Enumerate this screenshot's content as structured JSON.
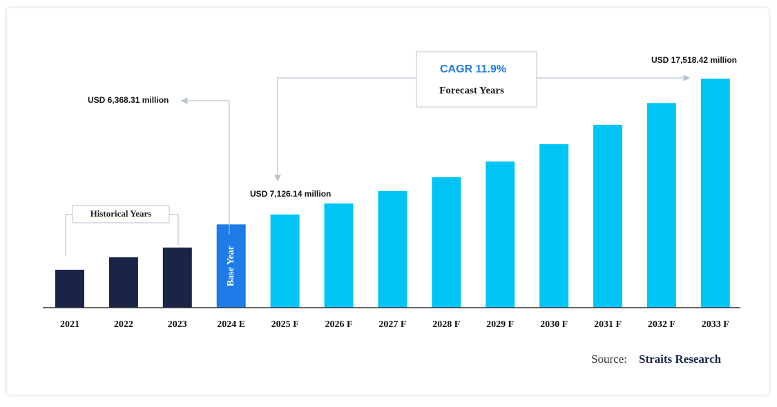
{
  "chart_data": {
    "type": "bar",
    "categories": [
      "2021",
      "2022",
      "2023",
      "2024 E",
      "2025 F",
      "2026 F",
      "2027 F",
      "2028 F",
      "2029 F",
      "2030 F",
      "2031 F",
      "2032 F",
      "2033 F"
    ],
    "values": [
      2900,
      3850,
      4600,
      6368.31,
      7126.14,
      7974,
      8923,
      9985,
      11173,
      12503,
      13991,
      15656,
      17518.42
    ],
    "value_labels": [
      null,
      null,
      null,
      "USD 6,368.31 million",
      "USD 7,126.14 million",
      null,
      null,
      null,
      null,
      null,
      null,
      null,
      "USD 17,518.42 million"
    ],
    "colors": [
      "#1a2448",
      "#1a2448",
      "#1a2448",
      "#1e7be8",
      "#00c4f5",
      "#00c4f5",
      "#00c4f5",
      "#00c4f5",
      "#00c4f5",
      "#00c4f5",
      "#00c4f5",
      "#00c4f5",
      "#00c4f5"
    ],
    "annotations": {
      "historical": "Historical Years",
      "base": "Base Year",
      "cagr": "CAGR 11.9%",
      "forecast": "Forecast Years"
    },
    "source": {
      "label": "Source:",
      "name": "Straits Research"
    }
  }
}
